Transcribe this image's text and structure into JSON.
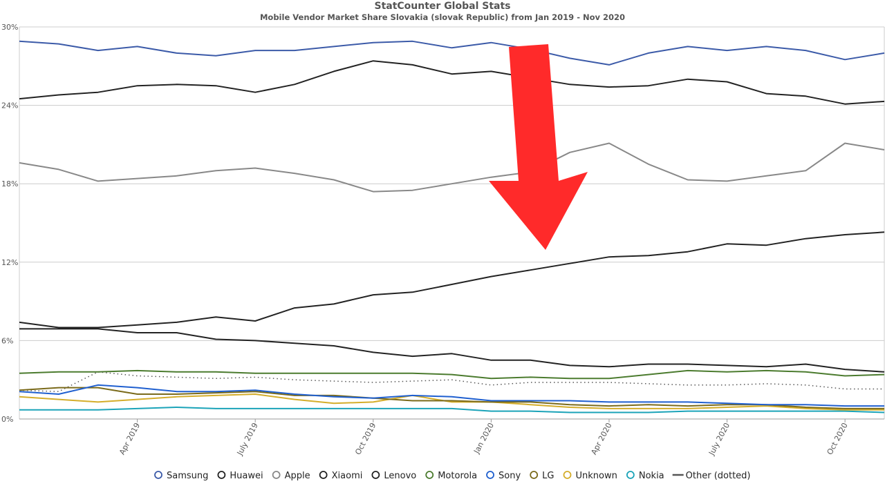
{
  "chart_data": {
    "type": "line",
    "title": "StatCounter Global Stats",
    "subtitle": "Mobile Vendor Market Share Slovakia (slovak Republic) from Jan 2019 - Nov 2020",
    "y_ticks": [
      "0%",
      "6%",
      "12%",
      "18%",
      "24%",
      "30%"
    ],
    "ylim": [
      0,
      30
    ],
    "x_month_index_range": [
      0,
      22
    ],
    "x_ticks": [
      {
        "label": "Apr 2019",
        "month_index": 3
      },
      {
        "label": "July 2019",
        "month_index": 6
      },
      {
        "label": "Oct 2019",
        "month_index": 9
      },
      {
        "label": "Jan 2020",
        "month_index": 12
      },
      {
        "label": "Apr 2020",
        "month_index": 15
      },
      {
        "label": "July 2020",
        "month_index": 18
      },
      {
        "label": "Oct 2020",
        "month_index": 21
      }
    ],
    "grid": true,
    "legend_position": "bottom",
    "series": [
      {
        "name": "Samsung",
        "color": "#3b5aa8",
        "dotted": false,
        "values": [
          28.9,
          28.7,
          28.2,
          28.5,
          28.0,
          27.8,
          28.2,
          28.2,
          28.5,
          28.8,
          28.9,
          28.4,
          28.8,
          28.3,
          27.6,
          27.1,
          28.0,
          28.5,
          28.2,
          28.5,
          28.2,
          27.5,
          28.0
        ]
      },
      {
        "name": "Huawei",
        "color": "#222222",
        "dotted": false,
        "values": [
          24.5,
          24.8,
          25.0,
          25.5,
          25.6,
          25.5,
          25.0,
          25.6,
          26.6,
          27.4,
          27.1,
          26.4,
          26.6,
          26.1,
          25.6,
          25.4,
          25.5,
          26.0,
          25.8,
          24.9,
          24.7,
          24.1,
          24.3
        ]
      },
      {
        "name": "Apple",
        "color": "#888888",
        "dotted": false,
        "values": [
          19.6,
          19.1,
          18.2,
          18.4,
          18.6,
          19.0,
          19.2,
          18.8,
          18.3,
          17.4,
          17.5,
          18.0,
          18.5,
          18.9,
          20.4,
          21.1,
          19.5,
          18.3,
          18.2,
          18.6,
          19.0,
          21.1,
          20.6
        ]
      },
      {
        "name": "Xiaomi",
        "color": "#222222",
        "dotted": false,
        "values": [
          7.4,
          7.0,
          7.0,
          7.2,
          7.4,
          7.8,
          7.5,
          8.5,
          8.8,
          9.5,
          9.7,
          10.3,
          10.9,
          11.4,
          11.9,
          12.4,
          12.5,
          12.8,
          13.4,
          13.3,
          13.8,
          14.1,
          14.3
        ]
      },
      {
        "name": "Lenovo",
        "color": "#222222",
        "dotted": false,
        "values": [
          6.9,
          6.9,
          6.9,
          6.6,
          6.6,
          6.1,
          6.0,
          5.8,
          5.6,
          5.1,
          4.8,
          5.0,
          4.5,
          4.5,
          4.1,
          4.0,
          4.2,
          4.2,
          4.1,
          4.0,
          4.2,
          3.8,
          3.6
        ]
      },
      {
        "name": "Motorola",
        "color": "#4b7b2e",
        "dotted": false,
        "values": [
          3.5,
          3.6,
          3.6,
          3.7,
          3.6,
          3.6,
          3.5,
          3.5,
          3.5,
          3.5,
          3.5,
          3.4,
          3.1,
          3.2,
          3.1,
          3.1,
          3.4,
          3.7,
          3.6,
          3.7,
          3.6,
          3.3,
          3.4
        ]
      },
      {
        "name": "Sony",
        "color": "#1f5fcf",
        "dotted": false,
        "values": [
          2.1,
          1.9,
          2.6,
          2.4,
          2.1,
          2.1,
          2.2,
          1.9,
          1.7,
          1.6,
          1.8,
          1.7,
          1.4,
          1.4,
          1.4,
          1.3,
          1.3,
          1.3,
          1.2,
          1.1,
          1.1,
          1.0,
          1.0
        ]
      },
      {
        "name": "LG",
        "color": "#7a6a1a",
        "dotted": false,
        "values": [
          2.2,
          2.4,
          2.4,
          1.9,
          1.9,
          2.0,
          2.1,
          1.8,
          1.8,
          1.6,
          1.4,
          1.4,
          1.3,
          1.3,
          1.1,
          1.0,
          1.1,
          1.0,
          1.1,
          1.1,
          0.9,
          0.8,
          0.8
        ]
      },
      {
        "name": "Unknown",
        "color": "#d4ad2a",
        "dotted": false,
        "values": [
          1.7,
          1.5,
          1.3,
          1.5,
          1.7,
          1.8,
          1.9,
          1.5,
          1.2,
          1.3,
          1.8,
          1.3,
          1.3,
          1.1,
          0.9,
          0.8,
          0.8,
          0.8,
          0.9,
          1.0,
          0.8,
          0.7,
          0.7
        ]
      },
      {
        "name": "Nokia",
        "color": "#1aa3b8",
        "dotted": false,
        "values": [
          0.7,
          0.7,
          0.7,
          0.8,
          0.9,
          0.8,
          0.8,
          0.8,
          0.8,
          0.8,
          0.8,
          0.8,
          0.6,
          0.6,
          0.5,
          0.5,
          0.5,
          0.6,
          0.6,
          0.6,
          0.6,
          0.6,
          0.5
        ]
      },
      {
        "name": "Other (dotted)",
        "color": "#555555",
        "dotted": true,
        "values": [
          2.2,
          2.1,
          3.6,
          3.3,
          3.2,
          3.1,
          3.2,
          3.0,
          2.9,
          2.8,
          2.9,
          3.0,
          2.6,
          2.8,
          2.8,
          2.8,
          2.7,
          2.6,
          2.6,
          2.7,
          2.6,
          2.3,
          2.3
        ]
      }
    ],
    "annotation": {
      "type": "arrow",
      "color": "#ff2a2a",
      "direction": "down"
    }
  }
}
